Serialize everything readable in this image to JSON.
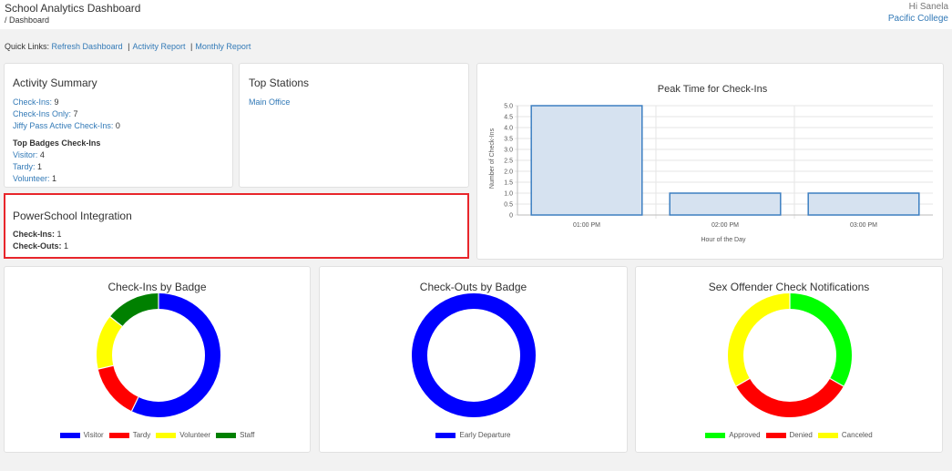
{
  "header": {
    "title": "School Analytics Dashboard",
    "breadcrumb": "/ Dashboard",
    "greeting": "Hi Sanela",
    "organization": "Pacific College"
  },
  "quick_links": {
    "label": "Quick Links:",
    "items": [
      "Refresh Dashboard",
      "Activity Report",
      "Monthly Report"
    ],
    "separator": "|"
  },
  "activity_summary": {
    "title": "Activity Summary",
    "rows": [
      {
        "label": "Check-Ins:",
        "value": "9"
      },
      {
        "label": "Check-Ins Only:",
        "value": "7"
      },
      {
        "label": "Jiffy Pass Active Check-Ins:",
        "value": "0"
      }
    ],
    "badges_heading": "Top Badges Check-Ins",
    "badges": [
      {
        "label": "Visitor:",
        "value": "4"
      },
      {
        "label": "Tardy:",
        "value": "1"
      },
      {
        "label": "Volunteer:",
        "value": "1"
      }
    ]
  },
  "top_stations": {
    "title": "Top Stations",
    "items": [
      "Main Office"
    ]
  },
  "powerschool": {
    "title": "PowerSchool Integration",
    "rows": [
      {
        "label": "Check-Ins:",
        "value": "1"
      },
      {
        "label": "Check-Outs:",
        "value": "1"
      }
    ]
  },
  "colors": {
    "accent_link": "#337ab7",
    "highlight_border": "#e8262b",
    "bar_fill": "#d6e2f0",
    "bar_stroke": "#3d7fc1"
  },
  "chart_data": [
    {
      "type": "bar",
      "title": "Peak Time for Check-Ins",
      "xlabel": "Hour of the Day",
      "ylabel": "Number of Check-Ins",
      "categories": [
        "01:00 PM",
        "02:00 PM",
        "03:00 PM"
      ],
      "values": [
        5,
        1,
        1
      ],
      "ylim": [
        0,
        5
      ],
      "yticks": [
        "0",
        "0.5",
        "1.0",
        "1.5",
        "2.0",
        "2.5",
        "3.0",
        "3.5",
        "4.0",
        "4.5",
        "5.0"
      ],
      "grid": true
    },
    {
      "type": "pie",
      "title": "Check-Ins by Badge",
      "labels": [
        "Visitor",
        "Tardy",
        "Volunteer",
        "Staff"
      ],
      "values": [
        4,
        1,
        1,
        1
      ],
      "colors": [
        "#0000ff",
        "#ff0000",
        "#ffff00",
        "#008000"
      ],
      "legend": "bottom"
    },
    {
      "type": "pie",
      "title": "Check-Outs by Badge",
      "labels": [
        "Early Departure"
      ],
      "values": [
        1
      ],
      "colors": [
        "#0000ff"
      ],
      "legend": "bottom"
    },
    {
      "type": "pie",
      "title": "Sex Offender Check Notifications",
      "labels": [
        "Approved",
        "Denied",
        "Canceled"
      ],
      "values": [
        1,
        1,
        1
      ],
      "colors": [
        "#00ff00",
        "#ff0000",
        "#ffff00"
      ],
      "legend": "bottom"
    }
  ]
}
